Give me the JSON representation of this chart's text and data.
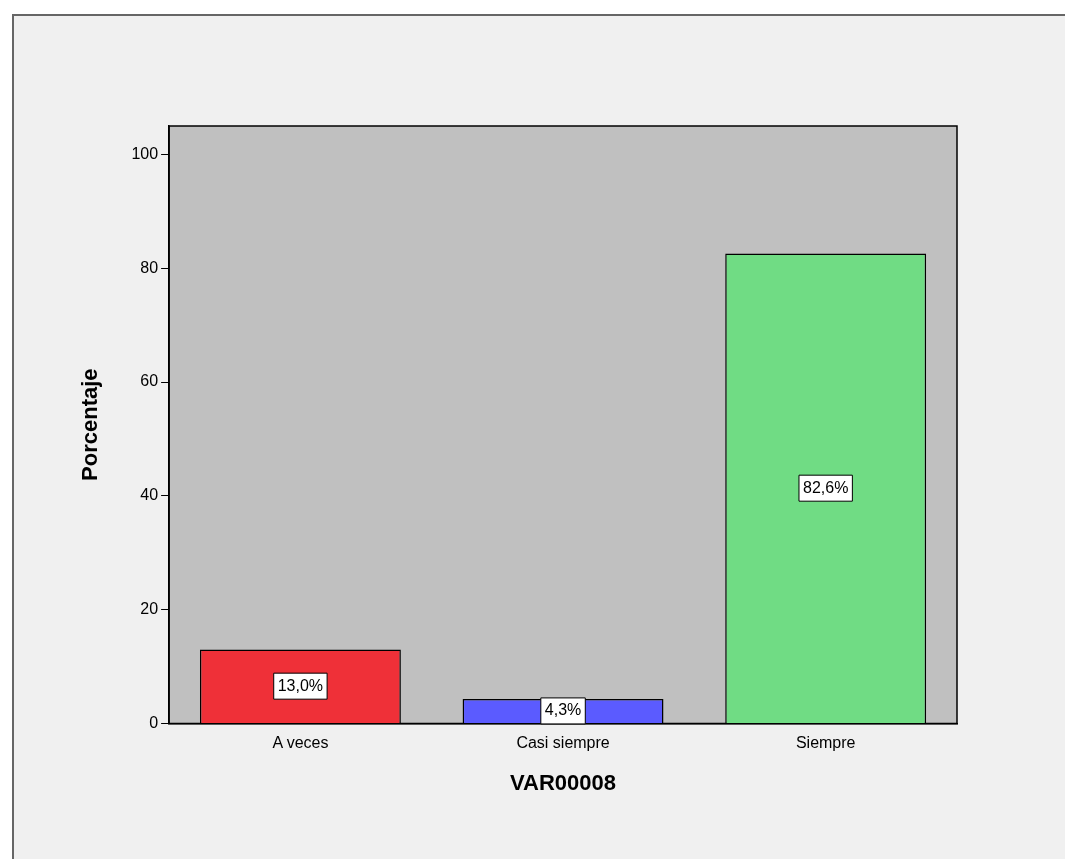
{
  "chart_data": {
    "type": "bar",
    "xlabel": "VAR00008",
    "ylabel": "Porcentaje",
    "categories": [
      "A veces",
      "Casi siempre",
      "Siempre"
    ],
    "values": [
      13.0,
      4.3,
      82.6
    ],
    "colors": [
      "#ef3038",
      "#5b5bff",
      "#70dc84"
    ],
    "value_labels": [
      "13,0%",
      "4,3%",
      "82,6%"
    ],
    "ylim": [
      0,
      105
    ],
    "yticks": [
      0,
      20,
      40,
      60,
      80,
      100
    ],
    "grid": false,
    "legend": false
  }
}
